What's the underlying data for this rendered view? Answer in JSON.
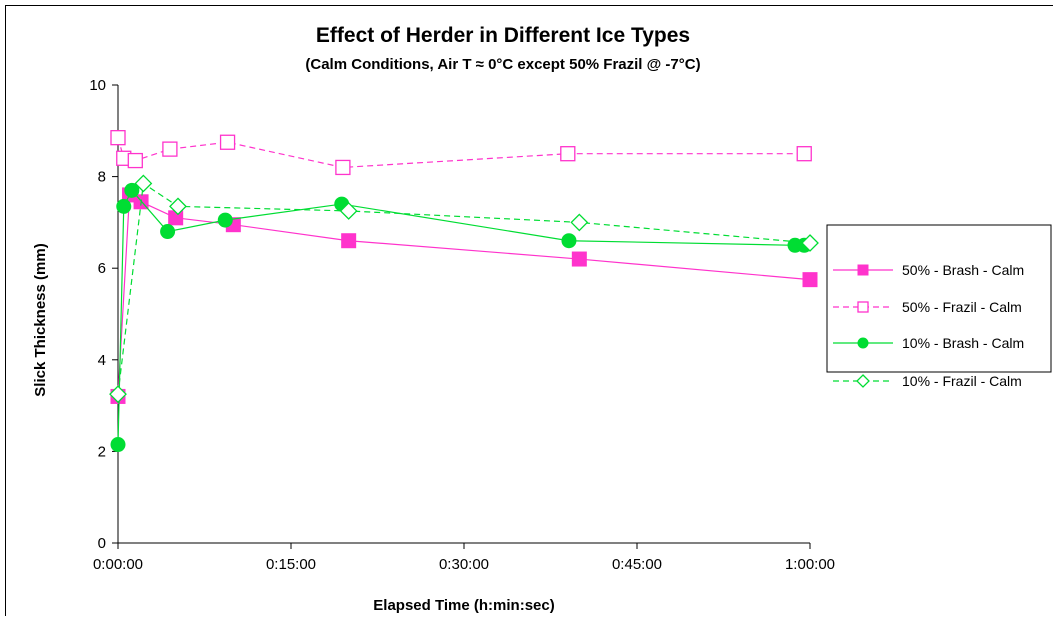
{
  "chart_data": {
    "type": "line",
    "title": "Effect of Herder in Different  Ice Types",
    "subtitle": "(Calm Conditions, Air T ≈ 0°C except 50% Frazil @ -7°C)",
    "xlabel": "Elapsed Time (h:min:sec)",
    "ylabel": "Slick Thickness (mm)",
    "x_unit": "minutes",
    "xlim": [
      0,
      60
    ],
    "ylim": [
      0,
      10
    ],
    "x_ticks": [
      {
        "value": 0,
        "label": "0:00:00"
      },
      {
        "value": 15,
        "label": "0:15:00"
      },
      {
        "value": 30,
        "label": "0:30:00"
      },
      {
        "value": 45,
        "label": "0:45:00"
      },
      {
        "value": 60,
        "label": "1:00:00"
      }
    ],
    "y_ticks": [
      {
        "value": 0,
        "label": "0"
      },
      {
        "value": 2,
        "label": "2"
      },
      {
        "value": 4,
        "label": "4"
      },
      {
        "value": 6,
        "label": "6"
      },
      {
        "value": 8,
        "label": "8"
      },
      {
        "value": 10,
        "label": "10"
      }
    ],
    "grid": false,
    "legend_position": "right",
    "series": [
      {
        "name": "50% - Brash - Calm",
        "color": "#ff33cc",
        "line_style": "solid",
        "marker": "filled-square",
        "x": [
          0,
          1,
          2,
          5,
          10,
          20,
          40,
          60
        ],
        "y": [
          3.2,
          7.6,
          7.45,
          7.1,
          6.95,
          6.6,
          6.2,
          5.75
        ]
      },
      {
        "name": "50% - Frazil  - Calm",
        "color": "#ff33cc",
        "line_style": "dashed",
        "marker": "open-square",
        "x": [
          0,
          0.5,
          1.5,
          4.5,
          9.5,
          19.5,
          39,
          59.5
        ],
        "y": [
          8.85,
          8.4,
          8.35,
          8.6,
          8.75,
          8.2,
          8.5,
          8.5
        ]
      },
      {
        "name": "10% - Brash - Calm",
        "color": "#00dd33",
        "line_style": "solid",
        "marker": "filled-circle",
        "x": [
          0,
          0.5,
          1.2,
          4.3,
          9.3,
          19.4,
          39.1,
          58.7,
          59.5
        ],
        "y": [
          2.15,
          7.35,
          7.7,
          6.8,
          7.05,
          7.4,
          6.6,
          6.5,
          6.5
        ]
      },
      {
        "name": "10% - Frazil - Calm",
        "color": "#00dd33",
        "line_style": "dashed",
        "marker": "open-diamond",
        "x": [
          0,
          2.2,
          5.2,
          20,
          40,
          60
        ],
        "y": [
          3.25,
          7.85,
          7.35,
          7.25,
          7.0,
          6.55
        ]
      }
    ]
  }
}
